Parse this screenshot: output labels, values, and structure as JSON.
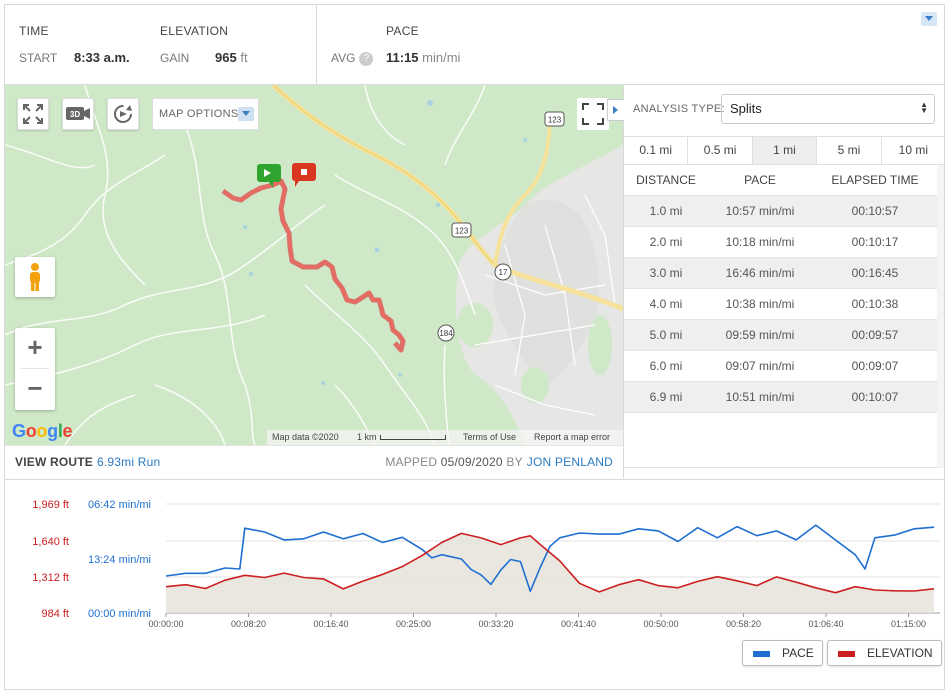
{
  "stats": {
    "time": {
      "header": "TIME",
      "key": "START",
      "value": "8:33 a.m."
    },
    "elevation": {
      "header": "ELEVATION",
      "key": "GAIN",
      "value": "965",
      "unit": "ft"
    },
    "pace": {
      "header": "PACE",
      "key": "AVG",
      "help": "?",
      "value": "11:15",
      "unit": "min/mi"
    }
  },
  "map": {
    "map_options_label": "MAP OPTIONS",
    "view_3d_label": "3D",
    "zoom_in": "+",
    "zoom_out": "−",
    "google_logo": "Google",
    "attribution": {
      "map_data": "Map data ©2020",
      "scale": "1 km",
      "terms": "Terms of Use",
      "report": "Report a map error"
    },
    "highway_labels": [
      "123",
      "123",
      "17",
      "184"
    ]
  },
  "route_bar": {
    "view_route_label": "VIEW ROUTE",
    "route_name": "6.93mi Run",
    "mapped_label": "MAPPED",
    "mapped_date": "05/09/2020",
    "by_label": "BY",
    "author": "JON PENLAND"
  },
  "analysis": {
    "type_label": "ANALYSIS TYPE:",
    "type_value": "Splits",
    "intervals": [
      "0.1 mi",
      "0.5 mi",
      "1 mi",
      "5 mi",
      "10 mi"
    ],
    "active_interval": "1 mi",
    "columns": [
      "DISTANCE",
      "PACE",
      "ELAPSED TIME"
    ],
    "rows": [
      [
        "1.0 mi",
        "10:57 min/mi",
        "00:10:57"
      ],
      [
        "2.0 mi",
        "10:18 min/mi",
        "00:10:17"
      ],
      [
        "3.0 mi",
        "16:46 min/mi",
        "00:16:45"
      ],
      [
        "4.0 mi",
        "10:38 min/mi",
        "00:10:38"
      ],
      [
        "5.0 mi",
        "09:59 min/mi",
        "00:09:57"
      ],
      [
        "6.0 mi",
        "09:07 min/mi",
        "00:09:07"
      ],
      [
        "6.9 mi",
        "10:51 min/mi",
        "00:10:07"
      ]
    ]
  },
  "colors": {
    "pace": "#1f6fd1",
    "elevation": "#cc1f1f",
    "link": "#2a7ac0",
    "map_green": "#cfe8c8"
  },
  "chart_data": {
    "type": "line",
    "x_ticks": [
      "00:00:00",
      "00:08:20",
      "00:16:40",
      "00:25:00",
      "00:33:20",
      "00:41:40",
      "00:50:00",
      "00:58:20",
      "01:06:40",
      "01:15:00"
    ],
    "elevation_ticks": [
      "1,969 ft",
      "1,640 ft",
      "1,312 ft",
      "984 ft"
    ],
    "pace_ticks": [
      "06:42 min/mi",
      "13:24 min/mi",
      "00:00 min/mi"
    ],
    "ylim_elevation": [
      984,
      1969
    ],
    "grid": true,
    "series": [
      {
        "name": "PACE",
        "x_min": [
          0,
          2,
          4,
          6,
          7.5,
          8,
          10,
          12,
          14,
          16,
          18,
          20,
          22,
          24,
          26,
          27,
          28,
          30,
          31,
          32,
          33,
          34,
          35,
          36,
          37,
          38,
          39,
          40,
          42,
          44,
          46,
          48,
          50,
          52,
          54,
          56,
          58,
          60,
          62,
          64,
          66,
          68,
          70,
          71,
          72,
          74,
          76,
          78
        ],
        "values": [
          0,
          9.3,
          9.3,
          8.3,
          8.5,
          0.8,
          1.5,
          3.0,
          2.8,
          1.5,
          2.8,
          1.8,
          3.5,
          2.5,
          4.8,
          6.4,
          5.8,
          6.6,
          8.6,
          9.6,
          11.4,
          8.7,
          6.7,
          7.1,
          12.7,
          8.2,
          4.2,
          2.6,
          1.7,
          1.9,
          1.9,
          0.9,
          1.3,
          3.3,
          0.7,
          2.6,
          0.5,
          2.2,
          1.3,
          3.0,
          0.2,
          0.0,
          5.8,
          8.5,
          2.6,
          2.1,
          0.9,
          0.6
        ]
      },
      {
        "name": "ELEVATION",
        "x_min": [
          0,
          2,
          4,
          6,
          8,
          10,
          12,
          14,
          16,
          18,
          20,
          22,
          24,
          26,
          28,
          30,
          32,
          34,
          36,
          37,
          38,
          40,
          42,
          44,
          46,
          48,
          50,
          52,
          54,
          56,
          58,
          60,
          62,
          64,
          66,
          68,
          70,
          72,
          74,
          76,
          78
        ],
        "values": [
          1222,
          1240,
          1205,
          1280,
          1325,
          1305,
          1345,
          1305,
          1292,
          1202,
          1272,
          1333,
          1403,
          1503,
          1621,
          1703,
          1663,
          1602,
          1663,
          1682,
          1603,
          1455,
          1252,
          1175,
          1240,
          1285,
          1232,
          1212,
          1270,
          1312,
          1275,
          1232,
          1310,
          1262,
          1212,
          1167,
          1222,
          1192,
          1185,
          1183,
          1203
        ]
      }
    ]
  }
}
